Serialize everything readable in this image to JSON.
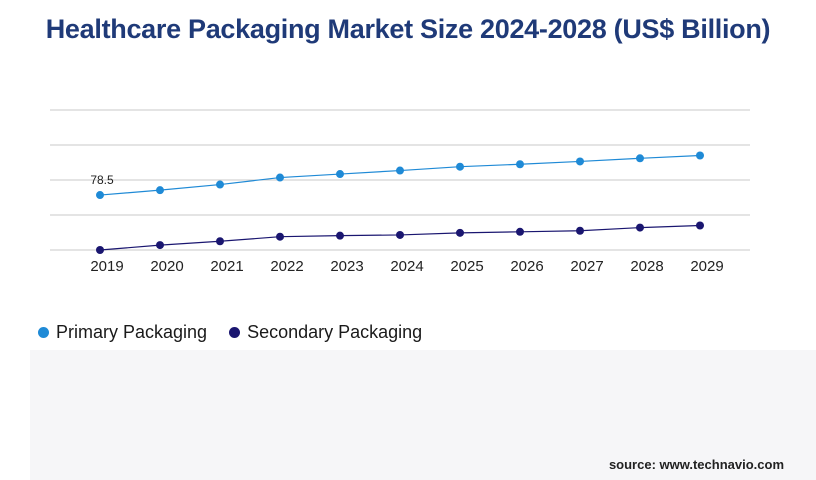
{
  "colors": {
    "title": "#1f3a78",
    "primary": "#1f8ad6",
    "secondary": "#1a1670",
    "grid": "#c8c8c8"
  },
  "source": "source: www.technavio.com",
  "chart_data": {
    "type": "line",
    "title": "Healthcare Packaging Market Size 2024-2028 (US$ Billion)",
    "xlabel": "",
    "ylabel": "",
    "grid": true,
    "legend_position": "bottom-left",
    "x": [
      "2019",
      "2020",
      "2021",
      "2022",
      "2023",
      "2024",
      "2025",
      "2026",
      "2027",
      "2028",
      "2029"
    ],
    "ylim": [
      0,
      200
    ],
    "series": [
      {
        "name": "Primary Packaging",
        "color": "#1f8ad6",
        "values": [
          78.5,
          85.5,
          93.5,
          103.5,
          108.5,
          113.5,
          119,
          122.5,
          126.5,
          131,
          135
        ],
        "labels": [
          "78.5",
          "",
          "",
          "",
          "",
          "",
          "",
          "",
          "",
          "",
          ""
        ]
      },
      {
        "name": "Secondary Packaging",
        "color": "#1a1670",
        "values": [
          0,
          7,
          12.5,
          19,
          20.5,
          21.5,
          24.5,
          26,
          27.5,
          32,
          35
        ]
      }
    ]
  }
}
